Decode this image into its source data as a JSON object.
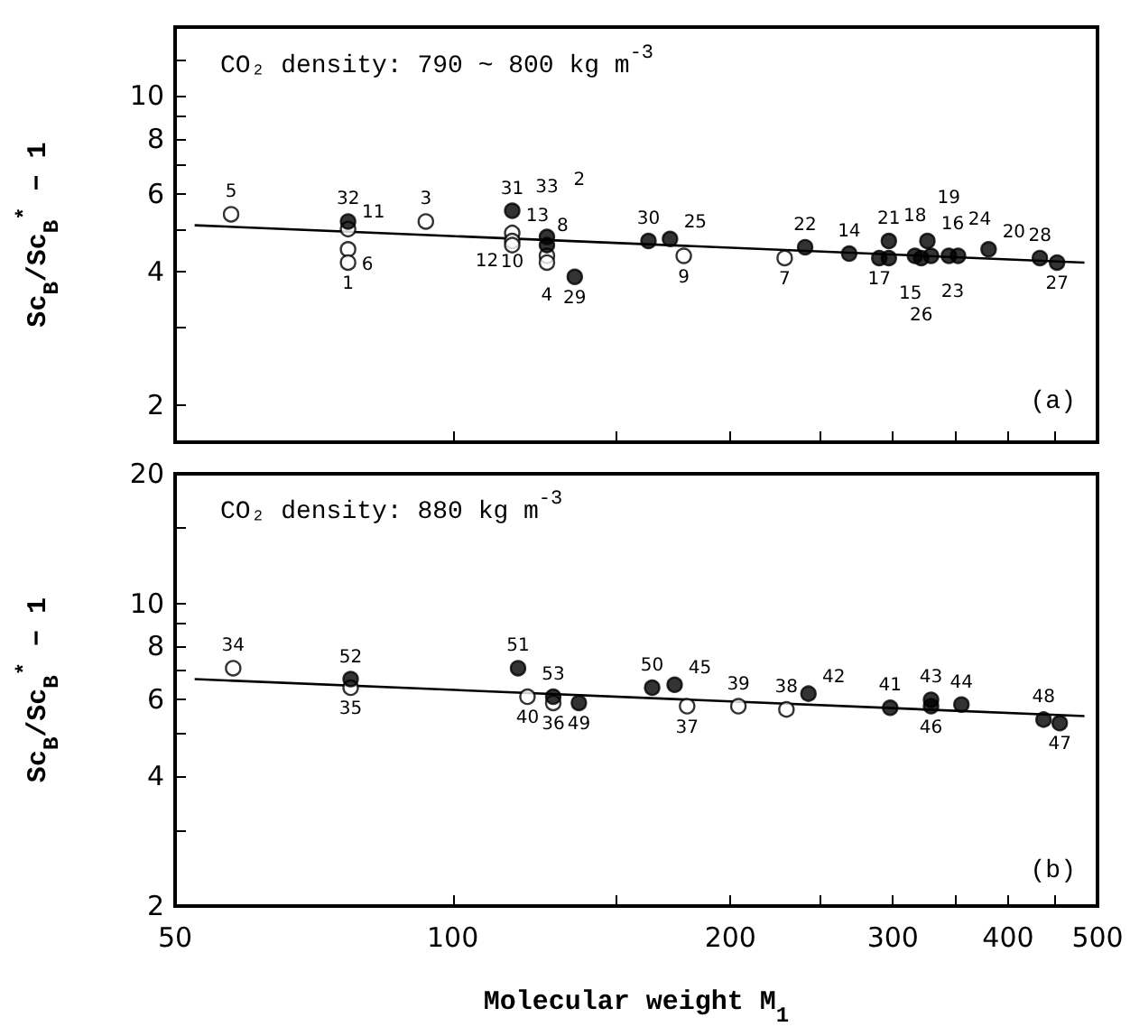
{
  "chart_data": [
    {
      "type": "scatter",
      "log": "xy",
      "tick_labels": "y",
      "ylabel": "Sc$_{B}$/Sc$_{B}$$^{*}$ − 1",
      "xlim": [
        50,
        500
      ],
      "xticks": [
        50,
        100,
        {
          "value": 150,
          "label": null
        },
        200,
        {
          "value": 250,
          "label": null
        },
        300,
        {
          "value": 350,
          "label": null
        },
        400,
        {
          "value": 450,
          "label": null
        },
        500
      ],
      "ylim": [
        1.65,
        14.3
      ],
      "yticks": [
        2,
        {
          "value": 3,
          "label": null
        },
        4,
        {
          "value": 5,
          "label": null
        },
        6,
        {
          "value": 7,
          "label": null
        },
        8,
        {
          "value": 9,
          "label": null
        },
        10,
        {
          "value": 12,
          "label": null
        }
      ],
      "series": [
        {
          "color": "#ffffff",
          "marker": "circle",
          "x": [
            57.5,
            77,
            77,
            77,
            93.5,
            116,
            116,
            116,
            126.5,
            126.5,
            178,
            229
          ],
          "values": [
            5.4,
            5.0,
            4.5,
            4.2,
            5.2,
            4.9,
            4.7,
            4.6,
            4.35,
            4.2,
            4.35,
            4.3
          ]
        },
        {
          "color": "#000000",
          "marker": "circle",
          "x": [
            77,
            116,
            126.5,
            126.5,
            135.6,
            163,
            172,
            241,
            269,
            297,
            290,
            297,
            317,
            327,
            330,
            322,
            345,
            353,
            381,
            433,
            452
          ],
          "values": [
            5.2,
            5.5,
            4.6,
            4.8,
            3.9,
            4.7,
            4.75,
            4.55,
            4.4,
            4.7,
            4.3,
            4.3,
            4.35,
            4.7,
            4.35,
            4.3,
            4.35,
            4.35,
            4.5,
            4.3,
            4.2
          ]
        },
        {
          "type": "line",
          "color": "#000000",
          "line_style": "solid",
          "x": [
            52.5,
            484
          ],
          "values": [
            5.1,
            4.2
          ]
        }
      ],
      "annotations": [
        "CO₂ density: 790 ~ 800 kg m$^{-3}$",
        "(a)",
        {
          "text": "5",
          "x": 57.5,
          "y": 5.4
        },
        {
          "text": "11",
          "x": 77,
          "y": 5.0
        },
        {
          "text": "6",
          "x": 77,
          "y": 4.5
        },
        {
          "text": "1",
          "x": 77,
          "y": 4.2
        },
        {
          "text": "3",
          "x": 93.5,
          "y": 5.2
        },
        {
          "text": "13",
          "x": 116,
          "y": 4.9
        },
        {
          "text": "10",
          "x": 116,
          "y": 4.7
        },
        {
          "text": "12",
          "x": 116,
          "y": 4.6
        },
        {
          "text": "4",
          "x": 126.5,
          "y": 4.35
        },
        {
          "text": "8",
          "x": 126.5,
          "y": 4.2
        },
        {
          "text": "9",
          "x": 178,
          "y": 4.35
        },
        {
          "text": "7",
          "x": 229,
          "y": 4.3
        },
        {
          "text": "32",
          "x": 77,
          "y": 5.2
        },
        {
          "text": "31",
          "x": 116,
          "y": 5.5
        },
        {
          "text": "33",
          "x": 126.5,
          "y": 4.6
        },
        {
          "text": "2",
          "x": 126.5,
          "y": 4.8
        },
        {
          "text": "29",
          "x": 135.6,
          "y": 3.9
        },
        {
          "text": "30",
          "x": 163,
          "y": 4.7
        },
        {
          "text": "25",
          "x": 172,
          "y": 4.75
        },
        {
          "text": "22",
          "x": 241,
          "y": 4.55
        },
        {
          "text": "14",
          "x": 269,
          "y": 4.4
        },
        {
          "text": "21",
          "x": 297,
          "y": 4.7
        },
        {
          "text": "17",
          "x": 290,
          "y": 4.3
        },
        {
          "text": "15",
          "x": 297,
          "y": 4.3
        },
        {
          "text": "18",
          "x": 317,
          "y": 4.35
        },
        {
          "text": "16",
          "x": 327,
          "y": 4.7
        },
        {
          "text": "23",
          "x": 330,
          "y": 4.35
        },
        {
          "text": "26",
          "x": 322,
          "y": 4.3
        },
        {
          "text": "19",
          "x": 345,
          "y": 4.35
        },
        {
          "text": "24",
          "x": 353,
          "y": 4.35
        },
        {
          "text": "20",
          "x": 381,
          "y": 4.5
        },
        {
          "text": "28",
          "x": 433,
          "y": 4.3
        },
        {
          "text": "27",
          "x": 452,
          "y": 4.2
        }
      ]
    },
    {
      "type": "scatter",
      "log": "xy",
      "xlabel": "Molecular weight M$_{1}$",
      "ylabel": "Sc$_{B}$/Sc$_{B}$$^{*}$ − 1",
      "xlim": [
        50,
        500
      ],
      "xticks": [
        50,
        100,
        {
          "value": 150,
          "label": null
        },
        200,
        {
          "value": 250,
          "label": null
        },
        300,
        {
          "value": 350,
          "label": null
        },
        400,
        {
          "value": 450,
          "label": null
        },
        500
      ],
      "ylim": [
        2,
        20
      ],
      "yticks": [
        2,
        {
          "value": 3,
          "label": null
        },
        4,
        {
          "value": 5,
          "label": null
        },
        6,
        {
          "value": 7,
          "label": null
        },
        8,
        {
          "value": 9,
          "label": null
        },
        10,
        {
          "value": 15,
          "label": null
        },
        20
      ],
      "series": [
        {
          "color": "#ffffff",
          "marker": "circle",
          "x": [
            57.8,
            77.5,
            120.5,
            128.5,
            179.5,
            204,
            230
          ],
          "values": [
            7.1,
            6.4,
            6.1,
            5.9,
            5.8,
            5.8,
            5.7
          ]
        },
        {
          "color": "#000000",
          "marker": "circle",
          "x": [
            77.5,
            117.7,
            128.5,
            137,
            164.5,
            174,
            243,
            298,
            330,
            330,
            356,
            437,
            455
          ],
          "values": [
            6.7,
            7.1,
            6.1,
            5.9,
            6.4,
            6.5,
            6.2,
            5.75,
            6.0,
            5.8,
            5.85,
            5.4,
            5.3
          ]
        },
        {
          "type": "line",
          "color": "#000000",
          "line_style": "solid",
          "x": [
            52.5,
            484
          ],
          "values": [
            6.7,
            5.5
          ]
        }
      ],
      "annotations": [
        "CO₂ density: 880 kg m$^{-3}$",
        "(b)",
        {
          "text": "34",
          "x": 57.8,
          "y": 7.1
        },
        {
          "text": "35",
          "x": 77.5,
          "y": 6.4
        },
        {
          "text": "40",
          "x": 120.5,
          "y": 6.1
        },
        {
          "text": "36",
          "x": 128.5,
          "y": 5.9
        },
        {
          "text": "37",
          "x": 179.5,
          "y": 5.8
        },
        {
          "text": "39",
          "x": 204,
          "y": 5.8
        },
        {
          "text": "38",
          "x": 230,
          "y": 5.7
        },
        {
          "text": "52",
          "x": 77.5,
          "y": 6.7
        },
        {
          "text": "51",
          "x": 117.7,
          "y": 7.1
        },
        {
          "text": "53",
          "x": 128.5,
          "y": 6.1
        },
        {
          "text": "49",
          "x": 137,
          "y": 5.9
        },
        {
          "text": "50",
          "x": 164.5,
          "y": 6.4
        },
        {
          "text": "45",
          "x": 174,
          "y": 6.5
        },
        {
          "text": "42",
          "x": 243,
          "y": 6.2
        },
        {
          "text": "41",
          "x": 298,
          "y": 5.75
        },
        {
          "text": "43",
          "x": 330,
          "y": 6.0
        },
        {
          "text": "46",
          "x": 330,
          "y": 5.8
        },
        {
          "text": "44",
          "x": 356,
          "y": 5.85
        },
        {
          "text": "48",
          "x": 437,
          "y": 5.4
        },
        {
          "text": "47",
          "x": 455,
          "y": 5.3
        }
      ]
    }
  ]
}
